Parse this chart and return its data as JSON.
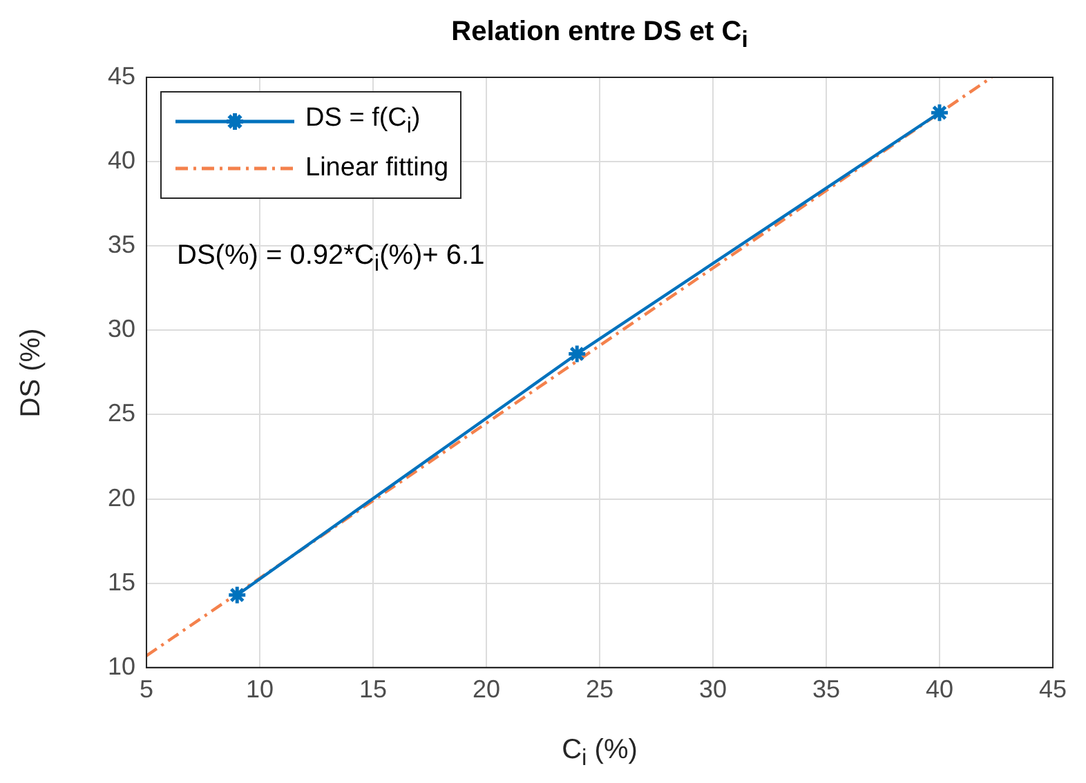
{
  "chart_data": {
    "type": "line",
    "title": "Relation entre DS et C$_{i}$",
    "xlabel": "C$_{i}$ (%)",
    "ylabel": "DS (%)",
    "annotations": [
      "DS(%) = 0.92*C$_{i}$(%)+ 6.1"
    ],
    "xlim": [
      5,
      45
    ],
    "xticks": [
      5,
      10,
      15,
      20,
      25,
      30,
      35,
      40,
      45
    ],
    "ylim": [
      10,
      45
    ],
    "yticks": [
      10,
      15,
      20,
      25,
      30,
      35,
      40,
      45
    ],
    "grid": true,
    "legend": "top left",
    "series": [
      {
        "name": "DS = f(C$_{i}$)",
        "color": "#0072bd",
        "x": [
          9,
          24,
          40
        ],
        "values": [
          14.3,
          28.6,
          42.9
        ],
        "marker": "cross",
        "line_style": "solid"
      },
      {
        "name": "Linear fitting",
        "color": "#f4814c",
        "x": [
          5,
          42.3
        ],
        "values": [
          10.7,
          45
        ],
        "marker": "none",
        "line_style": "dashed"
      }
    ]
  }
}
